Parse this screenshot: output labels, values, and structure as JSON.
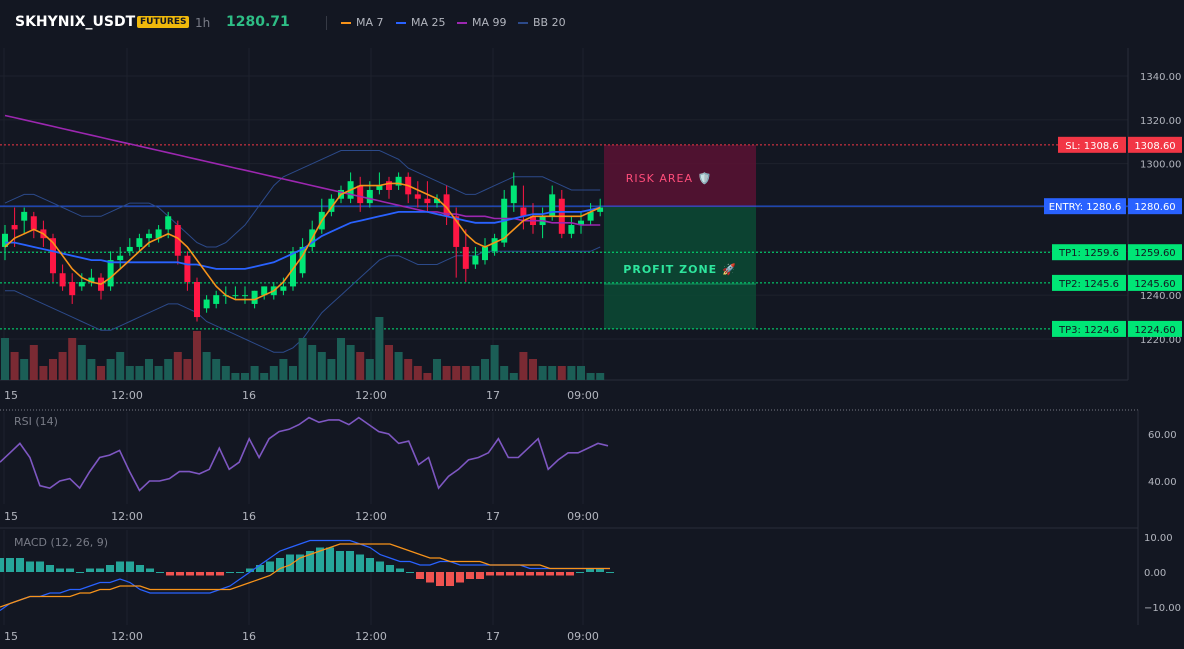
{
  "header": {
    "symbol": "SKHYNIX_USDT",
    "badge": "FUTURES",
    "timeframe": "1h",
    "last_price": "1280.71",
    "legend": [
      {
        "label": "MA 7",
        "color": "#f7931a"
      },
      {
        "label": "MA 25",
        "color": "#2962ff"
      },
      {
        "label": "MA 99",
        "color": "#9c27b0"
      },
      {
        "label": "BB 20",
        "color": "#2c4a8a"
      }
    ]
  },
  "colors": {
    "up": "#26a69a",
    "up_bright": "#00e676",
    "down": "#ef5350",
    "down_bright": "#ff1744",
    "background": "#131722",
    "grid": "#1e222d"
  },
  "price_axis": {
    "ticks": [
      "1340.00",
      "1320.00",
      "1300.00",
      "1280.00",
      "1260.00",
      "1240.00",
      "1220.00"
    ],
    "ticks_values": [
      1340,
      1320,
      1300,
      1280,
      1260,
      1240,
      1220
    ]
  },
  "time_axis": {
    "labels": [
      "15",
      "12:00",
      "16",
      "12:00",
      "17",
      "09:00"
    ]
  },
  "levels": {
    "sl": {
      "label": "SL: 1308.6",
      "value": "1308.60",
      "price": 1308.6,
      "color": "#f23645"
    },
    "entry": {
      "label": "ENTRY: 1280.6",
      "value": "1280.60",
      "price": 1280.6,
      "color": "#2962ff"
    },
    "tp1": {
      "label": "TP1: 1259.6",
      "value": "1259.60",
      "price": 1259.6,
      "color": "#00e676"
    },
    "tp2": {
      "label": "TP2: 1245.6",
      "value": "1245.60",
      "price": 1245.6,
      "color": "#00e676"
    },
    "tp3": {
      "label": "TP3: 1224.6",
      "value": "1224.60",
      "price": 1224.6,
      "color": "#00e676"
    }
  },
  "zones": {
    "risk_label": "RISK AREA 🛡️",
    "profit_label": "PROFIT ZONE 🚀"
  },
  "rsi": {
    "title": "RSI (14)",
    "ticks": [
      "60.00",
      "40.00"
    ],
    "values": [
      48,
      52,
      56,
      50,
      38,
      37,
      40,
      41,
      37,
      44,
      50,
      51,
      53,
      44,
      36,
      40,
      40,
      41,
      44,
      44,
      43,
      45,
      54,
      45,
      48,
      58,
      50,
      58,
      61,
      62,
      64,
      67,
      65,
      66,
      66,
      64,
      67,
      64,
      61,
      60,
      56,
      57,
      47,
      50,
      37,
      42,
      45,
      49,
      50,
      52,
      58,
      50,
      50,
      54,
      58,
      45,
      49,
      52,
      52,
      54,
      56,
      55
    ]
  },
  "macd": {
    "title": "MACD (12, 26, 9)",
    "ticks": [
      "10.00",
      "0.00",
      "−10.00"
    ],
    "hist": [
      4,
      4,
      4,
      3,
      3,
      2,
      1,
      1,
      0,
      1,
      1,
      2,
      3,
      3,
      2,
      1,
      0,
      -1,
      -1,
      -1,
      -1,
      -1,
      -1,
      0,
      0,
      1,
      2,
      3,
      4,
      5,
      5,
      6,
      7,
      7,
      6,
      6,
      5,
      4,
      3,
      2,
      1,
      0,
      -2,
      -3,
      -4,
      -4,
      -3,
      -2,
      -2,
      -1,
      -1,
      -1,
      -1,
      -1,
      -1,
      -1,
      -1,
      -1,
      0,
      1,
      1,
      0
    ],
    "macd_line": [
      -11,
      -9,
      -8,
      -7,
      -7,
      -6,
      -6,
      -5,
      -5,
      -4,
      -3,
      -3,
      -2,
      -3,
      -5,
      -6,
      -6,
      -6,
      -6,
      -6,
      -6,
      -6,
      -5,
      -4,
      -2,
      0,
      2,
      4,
      6,
      7,
      8,
      9,
      9,
      9,
      9,
      9,
      8,
      7,
      5,
      4,
      3,
      3,
      2,
      2,
      3,
      3,
      2,
      2,
      2,
      2,
      2,
      2,
      2,
      1,
      1,
      1,
      1,
      1,
      1,
      1,
      1,
      1
    ],
    "signal_line": [
      -10,
      -9,
      -8,
      -7,
      -7,
      -7,
      -7,
      -7,
      -6,
      -6,
      -5,
      -5,
      -4,
      -4,
      -4,
      -5,
      -5,
      -5,
      -5,
      -5,
      -5,
      -5,
      -5,
      -5,
      -4,
      -3,
      -2,
      -1,
      1,
      2,
      4,
      5,
      6,
      7,
      8,
      8,
      8,
      8,
      8,
      8,
      7,
      6,
      5,
      4,
      4,
      3,
      3,
      3,
      3,
      2,
      2,
      2,
      2,
      2,
      2,
      1,
      1,
      1,
      1,
      1,
      1,
      1
    ]
  },
  "chart_data": {
    "type": "candlestick",
    "candles": [
      [
        1262,
        1272,
        1268,
        1256
      ],
      [
        1272,
        1280,
        1270,
        1262
      ],
      [
        1274,
        1280,
        1278,
        1268
      ],
      [
        1276,
        1278,
        1270,
        1266
      ],
      [
        1270,
        1274,
        1266,
        1262
      ],
      [
        1266,
        1268,
        1250,
        1246
      ],
      [
        1250,
        1254,
        1244,
        1242
      ],
      [
        1246,
        1250,
        1240,
        1236
      ],
      [
        1244,
        1250,
        1246,
        1242
      ],
      [
        1246,
        1252,
        1248,
        1244
      ],
      [
        1248,
        1250,
        1242,
        1238
      ],
      [
        1244,
        1260,
        1256,
        1242
      ],
      [
        1256,
        1262,
        1258,
        1252
      ],
      [
        1260,
        1266,
        1262,
        1258
      ],
      [
        1262,
        1268,
        1266,
        1260
      ],
      [
        1266,
        1270,
        1268,
        1262
      ],
      [
        1266,
        1272,
        1270,
        1264
      ],
      [
        1270,
        1278,
        1276,
        1266
      ],
      [
        1272,
        1274,
        1258,
        1254
      ],
      [
        1258,
        1260,
        1246,
        1242
      ],
      [
        1246,
        1248,
        1230,
        1228
      ],
      [
        1234,
        1240,
        1238,
        1232
      ],
      [
        1236,
        1242,
        1240,
        1234
      ],
      [
        1240,
        1244,
        1240,
        1236
      ],
      [
        1240,
        1244,
        1240,
        1238
      ],
      [
        1240,
        1244,
        1240,
        1236
      ],
      [
        1236,
        1242,
        1242,
        1234
      ],
      [
        1240,
        1244,
        1244,
        1238
      ],
      [
        1240,
        1246,
        1244,
        1238
      ],
      [
        1242,
        1248,
        1244,
        1240
      ],
      [
        1244,
        1262,
        1260,
        1242
      ],
      [
        1250,
        1266,
        1262,
        1248
      ],
      [
        1262,
        1274,
        1270,
        1260
      ],
      [
        1270,
        1284,
        1278,
        1268
      ],
      [
        1278,
        1286,
        1284,
        1276
      ],
      [
        1284,
        1290,
        1288,
        1282
      ],
      [
        1284,
        1296,
        1292,
        1282
      ],
      [
        1290,
        1294,
        1282,
        1278
      ],
      [
        1282,
        1292,
        1288,
        1280
      ],
      [
        1288,
        1296,
        1290,
        1286
      ],
      [
        1292,
        1294,
        1288,
        1284
      ],
      [
        1290,
        1296,
        1294,
        1288
      ],
      [
        1294,
        1296,
        1286,
        1282
      ],
      [
        1286,
        1292,
        1284,
        1280
      ],
      [
        1284,
        1292,
        1282,
        1278
      ],
      [
        1282,
        1286,
        1284,
        1280
      ],
      [
        1286,
        1290,
        1276,
        1272
      ],
      [
        1276,
        1280,
        1262,
        1248
      ],
      [
        1262,
        1270,
        1252,
        1246
      ],
      [
        1254,
        1262,
        1258,
        1252
      ],
      [
        1256,
        1266,
        1262,
        1254
      ],
      [
        1260,
        1268,
        1266,
        1258
      ],
      [
        1264,
        1288,
        1284,
        1262
      ],
      [
        1282,
        1296,
        1290,
        1278
      ],
      [
        1280,
        1290,
        1276,
        1270
      ],
      [
        1276,
        1282,
        1272,
        1268
      ],
      [
        1272,
        1280,
        1276,
        1266
      ],
      [
        1276,
        1290,
        1286,
        1274
      ],
      [
        1284,
        1288,
        1268,
        1266
      ],
      [
        1268,
        1276,
        1272,
        1266
      ],
      [
        1272,
        1278,
        1274,
        1268
      ],
      [
        1274,
        1282,
        1278,
        1272
      ],
      [
        1278,
        1284,
        1280,
        1276
      ]
    ],
    "ma7": [
      1262,
      1266,
      1268,
      1270,
      1268,
      1264,
      1258,
      1252,
      1248,
      1246,
      1245,
      1248,
      1252,
      1256,
      1260,
      1264,
      1266,
      1268,
      1266,
      1262,
      1256,
      1250,
      1244,
      1240,
      1238,
      1238,
      1238,
      1240,
      1242,
      1246,
      1252,
      1258,
      1266,
      1274,
      1280,
      1286,
      1288,
      1290,
      1290,
      1290,
      1291,
      1291,
      1290,
      1288,
      1286,
      1284,
      1280,
      1274,
      1268,
      1264,
      1262,
      1264,
      1266,
      1270,
      1274,
      1276,
      1276,
      1276,
      1276,
      1276,
      1276,
      1278,
      1280
    ],
    "ma25": [
      1264,
      1264,
      1263,
      1262,
      1261,
      1260,
      1259,
      1258,
      1257,
      1256,
      1256,
      1255,
      1255,
      1255,
      1255,
      1255,
      1255,
      1255,
      1255,
      1254,
      1254,
      1253,
      1252,
      1252,
      1252,
      1252,
      1253,
      1254,
      1255,
      1257,
      1259,
      1261,
      1264,
      1267,
      1269,
      1271,
      1273,
      1274,
      1275,
      1276,
      1277,
      1278,
      1278,
      1278,
      1278,
      1277,
      1276,
      1275,
      1274,
      1273,
      1273,
      1273,
      1274,
      1275,
      1276,
      1277,
      1277,
      1278,
      1278,
      1278,
      1278,
      1279,
      1280
    ],
    "ma99": [
      1322,
      1321,
      1320,
      1319,
      1318,
      1317,
      1316,
      1315,
      1314,
      1313,
      1312,
      1311,
      1310,
      1309,
      1308,
      1307,
      1306,
      1305,
      1304,
      1303,
      1302,
      1301,
      1300,
      1299,
      1298,
      1297,
      1296,
      1295,
      1294,
      1293,
      1292,
      1291,
      1290,
      1289,
      1288,
      1287,
      1286,
      1285,
      1284,
      1283,
      1282,
      1281,
      1280,
      1279,
      1278,
      1278,
      1277,
      1277,
      1276,
      1276,
      1276,
      1275,
      1275,
      1275,
      1274,
      1274,
      1274,
      1273,
      1273,
      1273,
      1272,
      1272,
      1272
    ],
    "bb_upper": [
      1282,
      1284,
      1286,
      1286,
      1284,
      1282,
      1280,
      1278,
      1276,
      1276,
      1276,
      1278,
      1280,
      1282,
      1282,
      1282,
      1280,
      1276,
      1272,
      1268,
      1264,
      1262,
      1262,
      1264,
      1268,
      1272,
      1278,
      1284,
      1290,
      1294,
      1296,
      1298,
      1300,
      1302,
      1304,
      1306,
      1306,
      1306,
      1306,
      1306,
      1304,
      1302,
      1298,
      1296,
      1294,
      1292,
      1290,
      1288,
      1286,
      1286,
      1288,
      1290,
      1292,
      1294,
      1294,
      1294,
      1294,
      1292,
      1290,
      1288,
      1288,
      1288,
      1288
    ],
    "bb_lower": [
      1242,
      1242,
      1240,
      1238,
      1236,
      1234,
      1232,
      1230,
      1228,
      1226,
      1224,
      1224,
      1226,
      1228,
      1230,
      1232,
      1234,
      1236,
      1236,
      1234,
      1232,
      1228,
      1226,
      1224,
      1222,
      1220,
      1218,
      1216,
      1214,
      1214,
      1216,
      1220,
      1226,
      1232,
      1236,
      1240,
      1244,
      1248,
      1252,
      1256,
      1258,
      1258,
      1256,
      1254,
      1254,
      1254,
      1256,
      1258,
      1258,
      1258,
      1260,
      1260,
      1260,
      1260,
      1260,
      1260,
      1260,
      1260,
      1260,
      1260,
      1260,
      1260,
      1262
    ],
    "volume": [
      6,
      4,
      3,
      5,
      2,
      3,
      4,
      6,
      5,
      3,
      2,
      3,
      4,
      2,
      2,
      3,
      2,
      3,
      4,
      3,
      7,
      4,
      3,
      2,
      1,
      1,
      2,
      1,
      2,
      3,
      2,
      6,
      5,
      4,
      3,
      6,
      5,
      4,
      3,
      9,
      5,
      4,
      3,
      2,
      1,
      3,
      2,
      2,
      2,
      2,
      3,
      5,
      2,
      1,
      4,
      3,
      2,
      2,
      2,
      2,
      2,
      1,
      1
    ],
    "x_labels": [
      "15",
      "12:00",
      "16",
      "12:00",
      "17",
      "09:00"
    ]
  }
}
